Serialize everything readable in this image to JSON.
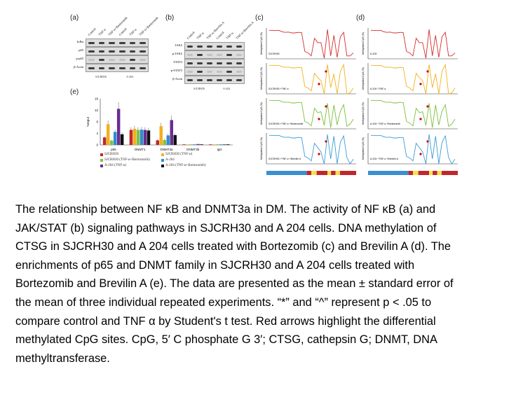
{
  "figure": {
    "panel_a": {
      "label": "(a)",
      "lanes": [
        "Control",
        "TNF-α",
        "TNF-α+Bortezomib",
        "Control",
        "TNF-α",
        "TNF-α+Bortezomib"
      ],
      "rows": [
        "IκBα",
        "p65",
        "p-p65",
        "β-Actin"
      ],
      "groups": [
        "SJCRH30",
        "A-204"
      ]
    },
    "panel_b": {
      "label": "(b)",
      "lanes": [
        "Control",
        "TNF-α",
        "TNF-α+Brevilin A",
        "Control",
        "TNF-α",
        "TNF-α+Brevilin A"
      ],
      "rows": [
        "JAK2",
        "p-JAK2",
        "STAT3",
        "p-STAT3",
        "β-Actin"
      ],
      "groups": [
        "SJCRH30",
        "A-204"
      ]
    },
    "panel_c": {
      "label": "(c)",
      "ylabel": "Methylated CpG (%)",
      "conditions": [
        "SJCRH30",
        "SJCRH30 +TNF-α",
        "SJCRH30 +TNF-α +Bortezomib",
        "SJCRH30 +TNF-α +Brevilin A"
      ]
    },
    "panel_d": {
      "label": "(d)",
      "ylabel": "Methylated CpG (%)",
      "conditions": [
        "A-204",
        "A-204 +TNF-α",
        "A-204 +TNF-α +Bortezomib",
        "A-204 +TNF-α +Brevilin A"
      ]
    },
    "colors": {
      "profile": [
        "#d62b2b",
        "#f0b21e",
        "#7bbf3a",
        "#3b9bd6"
      ],
      "arrow": "#cc0000"
    }
  },
  "chart_data": {
    "type": "bar",
    "label": "(e)",
    "ylabel": "%Input",
    "ylim": [
      0,
      16
    ],
    "yticks": [
      "0",
      "4",
      "8",
      "12",
      "16"
    ],
    "categories": [
      "p65",
      "DNMT1",
      "DNMT3a",
      "DNMT3b",
      "IgG"
    ],
    "series": [
      {
        "name": "SJCRH30",
        "color": "#c0272d",
        "values": [
          2.6,
          5.2,
          1.6,
          0.2,
          0.2
        ]
      },
      {
        "name": "SJCRH30 (TNF-α)",
        "color": "#f2b01e",
        "values": [
          7.2,
          5.6,
          6.5,
          0.2,
          0.2
        ]
      },
      {
        "name": "SJCRH30 (TNF-α+Bortezomib)",
        "color": "#7fc241",
        "values": [
          1.5,
          5.2,
          1.7,
          0.2,
          0.2
        ]
      },
      {
        "name": "A-204",
        "color": "#2a8fd0",
        "values": [
          4.5,
          5.3,
          3.3,
          0.2,
          0.2
        ]
      },
      {
        "name": "A-204 (TNF-α)",
        "color": "#6a2c91",
        "values": [
          12.5,
          5.2,
          8.6,
          0.3,
          0.2
        ]
      },
      {
        "name": "A-204 (TNF-α+Bortezomib)",
        "color": "#111111",
        "values": [
          3.7,
          5.0,
          3.4,
          0.2,
          0.2
        ]
      }
    ],
    "profile": [
      97,
      97,
      96,
      97,
      92,
      90,
      91,
      88,
      88,
      90,
      89,
      25,
      20,
      10,
      70,
      55,
      55,
      2,
      100,
      10,
      80,
      5,
      75,
      90,
      10,
      10,
      20
    ]
  },
  "caption": {
    "lines": [
      "The relationship between NF κB and DNMT3a in DM. The activity of NF κB (a) and",
      "JAK/STAT (b) signaling pathways in SJCRH30 and A 204 cells. DNA methylation of",
      "CTSG in SJCRH30 and A 204 cells treated with Bortezomib (c) and Brevilin A (d). The",
      "enrichments of p65 and DNMT family in SJCRH30 and A 204 cells treated with",
      "Bortezomib and Brevilin A (e). The data are presented as the mean ± standard error of",
      "the mean of three individual repeated experiments. “*” and “^” represent p < .05 to",
      "compare control and TNF α by Student's t test. Red arrows highlight the differential",
      "methylated CpG sites. CpG, 5′ C phosphate G 3′; CTSG, cathepsin G; DNMT, DNA",
      "methyltransferase."
    ]
  }
}
